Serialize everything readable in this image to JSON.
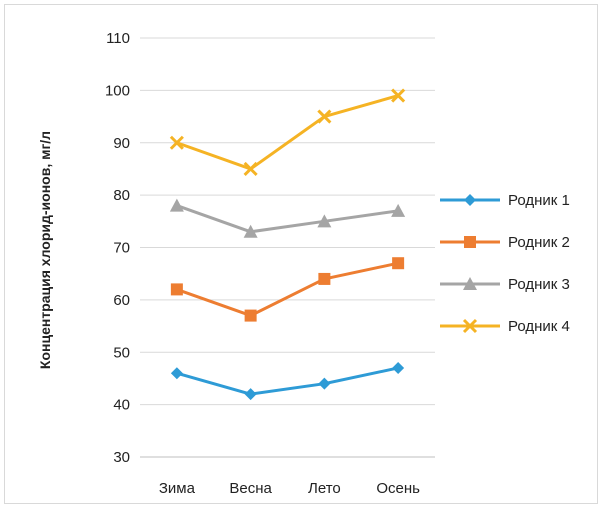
{
  "chart_data": {
    "type": "line",
    "title": "",
    "xlabel": "",
    "ylabel": "Концентрация хлорид-ионов, мг/л",
    "categories": [
      "Зима",
      "Весна",
      "Лето",
      "Осень"
    ],
    "ylim": [
      30,
      110
    ],
    "yticks": [
      30,
      40,
      50,
      60,
      70,
      80,
      90,
      100,
      110
    ],
    "grid": true,
    "legend_position": "right",
    "series": [
      {
        "name": "Родник 1",
        "values": [
          46,
          42,
          44,
          47
        ],
        "color": "#2e9bd6",
        "marker": "diamond"
      },
      {
        "name": "Родник 2",
        "values": [
          62,
          57,
          64,
          67
        ],
        "color": "#ed7d31",
        "marker": "square"
      },
      {
        "name": "Родник 3",
        "values": [
          78,
          73,
          75,
          77
        ],
        "color": "#a5a5a5",
        "marker": "triangle"
      },
      {
        "name": "Родник 4",
        "values": [
          90,
          85,
          95,
          99
        ],
        "color": "#f5b324",
        "marker": "x"
      }
    ]
  }
}
